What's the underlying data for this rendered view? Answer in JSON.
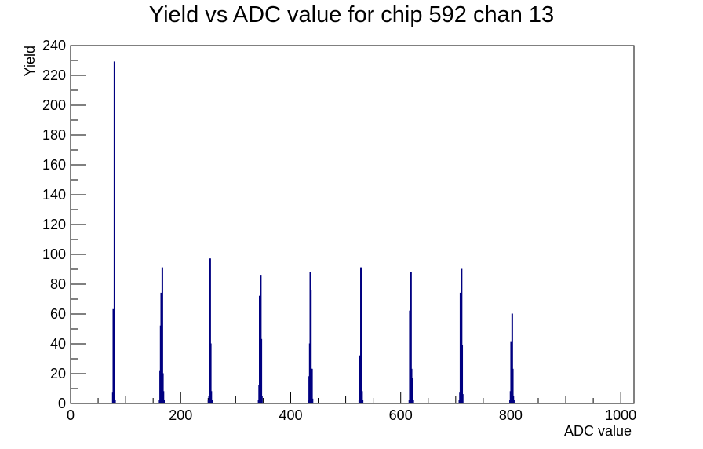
{
  "chart_data": {
    "type": "histogram",
    "title": "Yield vs ADC value for chip 592 chan 13",
    "xlabel": "ADC value",
    "ylabel": "Yield",
    "xlim": [
      0,
      1024
    ],
    "ylim": [
      0,
      240
    ],
    "x_ticks": [
      0,
      200,
      400,
      600,
      800,
      1000
    ],
    "y_ticks": [
      0,
      20,
      40,
      60,
      80,
      100,
      120,
      140,
      160,
      180,
      200,
      220,
      240
    ],
    "grid": false,
    "color": "#000080",
    "peaks": [
      {
        "center": 79,
        "bins": [
          [
            76,
            7
          ],
          [
            77,
            63
          ],
          [
            78,
            35
          ],
          [
            79,
            229
          ],
          [
            80,
            2
          ]
        ]
      },
      {
        "center": 166,
        "bins": [
          [
            161,
            2
          ],
          [
            162,
            22
          ],
          [
            163,
            52
          ],
          [
            164,
            74
          ],
          [
            165,
            45
          ],
          [
            166,
            91
          ],
          [
            167,
            20
          ],
          [
            168,
            8
          ],
          [
            169,
            2
          ]
        ]
      },
      {
        "center": 254,
        "bins": [
          [
            250,
            2
          ],
          [
            251,
            5
          ],
          [
            252,
            56
          ],
          [
            253,
            97
          ],
          [
            254,
            40
          ],
          [
            255,
            8
          ],
          [
            256,
            2
          ]
        ]
      },
      {
        "center": 345,
        "bins": [
          [
            341,
            2
          ],
          [
            342,
            12
          ],
          [
            343,
            72
          ],
          [
            344,
            60
          ],
          [
            345,
            86
          ],
          [
            346,
            43
          ],
          [
            347,
            5
          ]
        ]
      },
      {
        "center": 437,
        "bins": [
          [
            432,
            2
          ],
          [
            433,
            18
          ],
          [
            434,
            40
          ],
          [
            435,
            88
          ],
          [
            436,
            76
          ],
          [
            437,
            23
          ],
          [
            438,
            23
          ],
          [
            439,
            3
          ]
        ]
      },
      {
        "center": 528,
        "bins": [
          [
            524,
            2
          ],
          [
            525,
            32
          ],
          [
            526,
            28
          ],
          [
            527,
            91
          ],
          [
            528,
            74
          ],
          [
            529,
            8
          ],
          [
            530,
            2
          ]
        ]
      },
      {
        "center": 619,
        "bins": [
          [
            615,
            2
          ],
          [
            616,
            62
          ],
          [
            617,
            68
          ],
          [
            618,
            88
          ],
          [
            619,
            23
          ],
          [
            620,
            17
          ],
          [
            621,
            8
          ],
          [
            622,
            2
          ]
        ]
      },
      {
        "center": 711,
        "bins": [
          [
            706,
            2
          ],
          [
            707,
            7
          ],
          [
            708,
            74
          ],
          [
            709,
            66
          ],
          [
            710,
            90
          ],
          [
            711,
            39
          ],
          [
            712,
            6
          ]
        ]
      },
      {
        "center": 801,
        "bins": [
          [
            798,
            2
          ],
          [
            799,
            8
          ],
          [
            800,
            41
          ],
          [
            801,
            35
          ],
          [
            802,
            60
          ],
          [
            803,
            23
          ],
          [
            804,
            5
          ],
          [
            805,
            2
          ]
        ]
      }
    ]
  }
}
